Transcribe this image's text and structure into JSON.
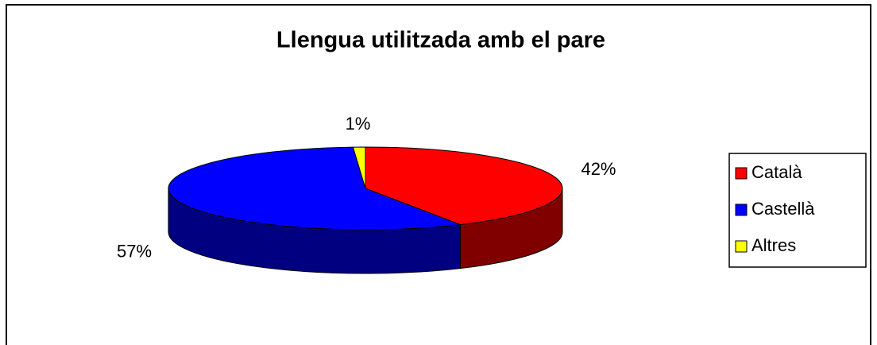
{
  "chart_data": {
    "type": "pie",
    "title": "Llengua utilitzada amb el pare",
    "categories": [
      "Català",
      "Castellà",
      "Altres"
    ],
    "values": [
      42,
      57,
      1
    ],
    "value_labels": [
      "42%",
      "57%",
      "1%"
    ],
    "colors": [
      "#ff0000",
      "#0000ff",
      "#ffff00"
    ],
    "legend": "right"
  }
}
